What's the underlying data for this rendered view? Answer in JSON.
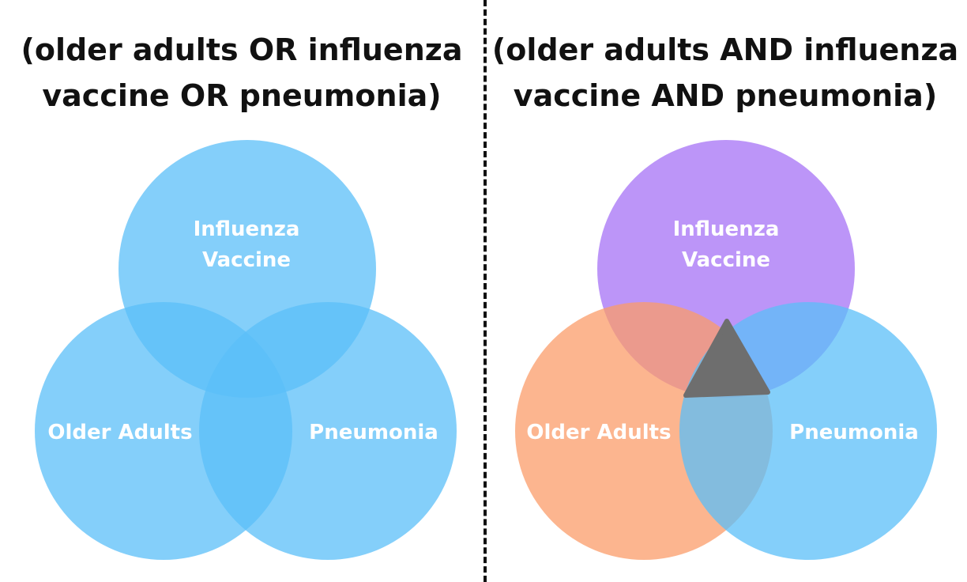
{
  "left_panel": {
    "title_line1": "(older adults OR influenza",
    "title_line2": "vaccine OR pneumonia)",
    "labels": {
      "top_line1": "Influenza",
      "top_line2": "Vaccine",
      "left": "Older Adults",
      "right": "Pneumonia"
    },
    "colors": {
      "all_circles": "#5bbff8"
    }
  },
  "right_panel": {
    "title_line1": "(older adults AND influenza",
    "title_line2": "vaccine AND pneumonia)",
    "labels": {
      "top_line1": "Influenza",
      "top_line2": "Vaccine",
      "left": "Older Adults",
      "right": "Pneumonia"
    },
    "colors": {
      "influenza_vaccine": "#a572f5",
      "older_adults": "#fb9c6a",
      "pneumonia": "#5bbff8",
      "intersection_marker": "#6e6e6e"
    }
  }
}
